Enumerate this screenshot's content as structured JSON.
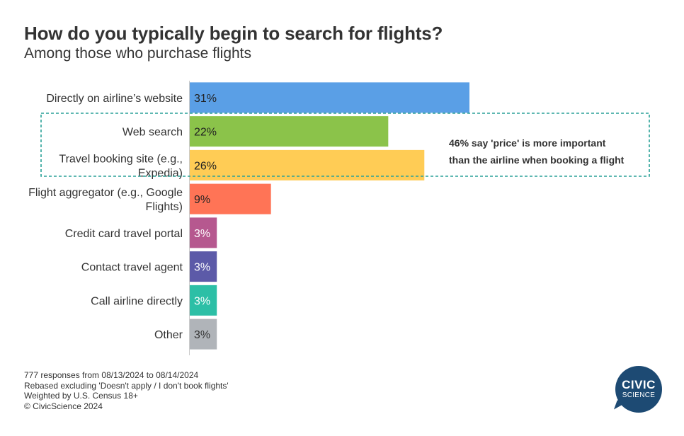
{
  "header": {
    "title": "How do you typically begin to search for flights?",
    "subtitle": "Among those who purchase flights"
  },
  "chart_data": {
    "type": "bar",
    "orientation": "horizontal",
    "title": "How do you typically begin to search for flights?",
    "subtitle": "Among those who purchase flights",
    "categories": [
      [
        "Directly on airline’s website"
      ],
      [
        "Web search"
      ],
      [
        "Travel booking site (e.g.,",
        "Expedia)"
      ],
      [
        "Flight aggregator (e.g., Google",
        "Flights)"
      ],
      [
        "Credit card travel portal"
      ],
      [
        "Contact travel agent"
      ],
      [
        "Call airline directly"
      ],
      [
        "Other"
      ]
    ],
    "values": [
      31,
      22,
      26,
      9,
      3,
      3,
      3,
      3
    ],
    "value_labels": [
      "31%",
      "22%",
      "26%",
      "9%",
      "3%",
      "3%",
      "3%",
      "3%"
    ],
    "colors": [
      "#5a9fe6",
      "#8bc34a",
      "#ffcc55",
      "#ff7456",
      "#b6588f",
      "#5c5aa8",
      "#2cbfa6",
      "#b0b4b9"
    ],
    "value_label_colors": [
      "#222222",
      "#222222",
      "#222222",
      "#222222",
      "#ffffff",
      "#ffffff",
      "#ffffff",
      "#333333"
    ],
    "xlim": [
      0,
      31
    ],
    "grid": false,
    "legend": "none",
    "annotation": {
      "lines": [
        "46% say 'price' is more important",
        "than the airline when booking a flight"
      ],
      "color": "#2aa198",
      "highlights_categories": [
        1,
        2
      ]
    }
  },
  "footer": {
    "lines": [
      "777 responses from 08/13/2024 to 08/14/2024",
      "Rebased excluding 'Doesn't apply / I don't book flights'",
      "Weighted by U.S. Census 18+",
      "© CivicScience 2024"
    ]
  },
  "logo": {
    "line1": "CIVIC",
    "line2": "SCIENCE",
    "color": "#1d4a73"
  }
}
